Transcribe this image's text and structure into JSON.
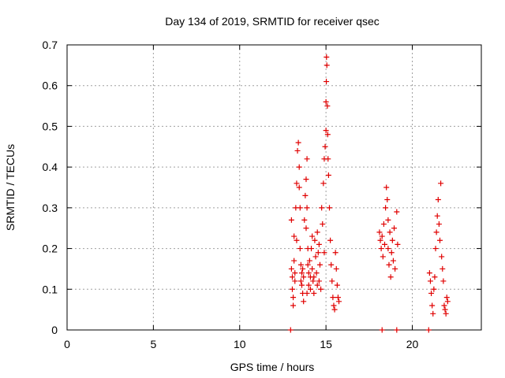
{
  "chart_data": {
    "type": "scatter",
    "title": "Day 134 of 2019, SRMTID for receiver qsec",
    "xlabel": "GPS time / hours",
    "ylabel": "SRMTID / TECUs",
    "xlim": [
      0,
      24
    ],
    "ylim": [
      0,
      0.7
    ],
    "x_ticks": [
      0,
      5,
      10,
      15,
      20
    ],
    "y_ticks": [
      0,
      0.1,
      0.2,
      0.3,
      0.4,
      0.5,
      0.6,
      0.7
    ],
    "grid": true,
    "marker": "plus",
    "color": "#e00000",
    "series": [
      {
        "points": [
          [
            12.95,
            0.0
          ],
          [
            18.25,
            0.0
          ],
          [
            19.1,
            0.0
          ],
          [
            20.95,
            0.0
          ],
          [
            13.0,
            0.27
          ],
          [
            13.0,
            0.15
          ],
          [
            13.05,
            0.13
          ],
          [
            13.05,
            0.1
          ],
          [
            13.1,
            0.08
          ],
          [
            13.1,
            0.06
          ],
          [
            13.15,
            0.23
          ],
          [
            13.15,
            0.17
          ],
          [
            13.2,
            0.14
          ],
          [
            13.2,
            0.12
          ],
          [
            13.25,
            0.3
          ],
          [
            13.3,
            0.36
          ],
          [
            13.3,
            0.22
          ],
          [
            13.35,
            0.44
          ],
          [
            13.4,
            0.46
          ],
          [
            13.45,
            0.4
          ],
          [
            13.45,
            0.35
          ],
          [
            13.5,
            0.3
          ],
          [
            13.5,
            0.2
          ],
          [
            13.55,
            0.16
          ],
          [
            13.55,
            0.12
          ],
          [
            13.6,
            0.14
          ],
          [
            13.6,
            0.11
          ],
          [
            13.65,
            0.15
          ],
          [
            13.65,
            0.09
          ],
          [
            13.7,
            0.13
          ],
          [
            13.7,
            0.07
          ],
          [
            13.75,
            0.27
          ],
          [
            13.8,
            0.33
          ],
          [
            13.85,
            0.37
          ],
          [
            13.85,
            0.25
          ],
          [
            13.9,
            0.42
          ],
          [
            13.9,
            0.3
          ],
          [
            13.95,
            0.2
          ],
          [
            13.95,
            0.16
          ],
          [
            14.0,
            0.14
          ],
          [
            14.0,
            0.11
          ],
          [
            14.05,
            0.17
          ],
          [
            14.1,
            0.13
          ],
          [
            14.1,
            0.1
          ],
          [
            14.15,
            0.2
          ],
          [
            14.2,
            0.15
          ],
          [
            14.25,
            0.12
          ],
          [
            14.3,
            0.09
          ],
          [
            14.35,
            0.22
          ],
          [
            14.4,
            0.18
          ],
          [
            14.45,
            0.14
          ],
          [
            14.5,
            0.24
          ],
          [
            14.5,
            0.11
          ],
          [
            14.55,
            0.19
          ],
          [
            14.6,
            0.12
          ],
          [
            14.65,
            0.16
          ],
          [
            14.7,
            0.1
          ],
          [
            14.75,
            0.3
          ],
          [
            14.8,
            0.26
          ],
          [
            14.85,
            0.36
          ],
          [
            14.9,
            0.42
          ],
          [
            14.95,
            0.45
          ],
          [
            15.0,
            0.49
          ],
          [
            15.0,
            0.56
          ],
          [
            15.02,
            0.61
          ],
          [
            15.03,
            0.67
          ],
          [
            15.05,
            0.65
          ],
          [
            15.08,
            0.55
          ],
          [
            15.1,
            0.48
          ],
          [
            15.12,
            0.42
          ],
          [
            15.15,
            0.38
          ],
          [
            15.2,
            0.3
          ],
          [
            15.25,
            0.22
          ],
          [
            15.3,
            0.16
          ],
          [
            15.35,
            0.12
          ],
          [
            15.4,
            0.08
          ],
          [
            15.45,
            0.06
          ],
          [
            15.5,
            0.05
          ],
          [
            15.55,
            0.19
          ],
          [
            15.6,
            0.15
          ],
          [
            15.65,
            0.11
          ],
          [
            15.7,
            0.08
          ],
          [
            15.75,
            0.07
          ],
          [
            14.2,
            0.23
          ],
          [
            14.6,
            0.21
          ],
          [
            14.9,
            0.19
          ],
          [
            13.9,
            0.09
          ],
          [
            14.3,
            0.13
          ],
          [
            18.1,
            0.24
          ],
          [
            18.15,
            0.22
          ],
          [
            18.2,
            0.2
          ],
          [
            18.25,
            0.23
          ],
          [
            18.3,
            0.18
          ],
          [
            18.35,
            0.26
          ],
          [
            18.4,
            0.21
          ],
          [
            18.45,
            0.3
          ],
          [
            18.5,
            0.35
          ],
          [
            18.55,
            0.32
          ],
          [
            18.6,
            0.27
          ],
          [
            18.6,
            0.2
          ],
          [
            18.65,
            0.16
          ],
          [
            18.7,
            0.24
          ],
          [
            18.75,
            0.13
          ],
          [
            18.8,
            0.19
          ],
          [
            18.85,
            0.22
          ],
          [
            18.9,
            0.17
          ],
          [
            18.95,
            0.25
          ],
          [
            19.0,
            0.15
          ],
          [
            19.1,
            0.29
          ],
          [
            19.15,
            0.21
          ],
          [
            21.0,
            0.14
          ],
          [
            21.05,
            0.12
          ],
          [
            21.1,
            0.09
          ],
          [
            21.15,
            0.06
          ],
          [
            21.2,
            0.04
          ],
          [
            21.25,
            0.1
          ],
          [
            21.3,
            0.13
          ],
          [
            21.35,
            0.2
          ],
          [
            21.4,
            0.24
          ],
          [
            21.45,
            0.28
          ],
          [
            21.5,
            0.32
          ],
          [
            21.55,
            0.26
          ],
          [
            21.6,
            0.22
          ],
          [
            21.65,
            0.36
          ],
          [
            21.7,
            0.18
          ],
          [
            21.75,
            0.15
          ],
          [
            21.8,
            0.12
          ],
          [
            21.85,
            0.06
          ],
          [
            21.9,
            0.05
          ],
          [
            21.95,
            0.04
          ],
          [
            22.0,
            0.08
          ],
          [
            22.05,
            0.07
          ]
        ]
      }
    ]
  }
}
